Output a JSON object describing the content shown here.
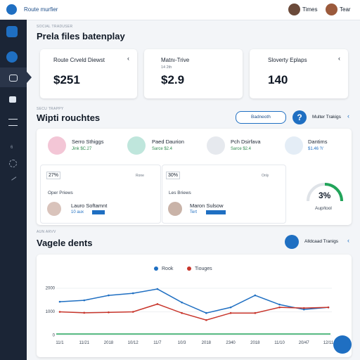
{
  "header": {
    "brand": "Route murfier",
    "users": [
      "Times",
      "Tear"
    ]
  },
  "sidebar_badge": "6",
  "section1": {
    "kicker": "SOCIAL TRADUSER",
    "title": "Prela files batenplay"
  },
  "cards": [
    {
      "label": "Route Crveld Diewst",
      "value": "$251"
    },
    {
      "label": "Matnı-Trive",
      "sub": "14 2th",
      "value": "$2.9"
    },
    {
      "label": "Sloverty Eplaps",
      "value": "140"
    }
  ],
  "section2": {
    "kicker": "SECU TRAPPY",
    "title": "Wipti rouchtes",
    "button": "Badneoth",
    "link": "Multer Trakigs"
  },
  "people": [
    {
      "name": "Serro Sthiggs",
      "detail": "Jink $C.27"
    },
    {
      "name": "Paed Daurion",
      "detail": "Sarce $2.4"
    },
    {
      "name": "Pch Dsirfava",
      "detail": "Sarce $2.4"
    },
    {
      "name": "Dantims",
      "detail": "$1.46 ?/"
    }
  ],
  "reviews": [
    {
      "percent": "27%",
      "tag": "Rone",
      "title": "Oper Priews",
      "name": "Lauro Softamnt",
      "detail": "10 aux"
    },
    {
      "percent": "30%",
      "tag": "Only",
      "title": "Les Briews",
      "name": "Maron Sulsow",
      "detail": "Tert"
    }
  ],
  "gauge": {
    "value": "3%",
    "label": "Aup/tool"
  },
  "section3": {
    "kicker": "AUN ARVV",
    "title": "Vagele dents",
    "link": "Alldcaad Tranigs"
  },
  "chart_data": {
    "type": "line",
    "categories": [
      "11/1",
      "11/21",
      "2018",
      "10/12",
      "11/7",
      "10/3",
      "2018",
      "2340",
      "2018",
      "11/10",
      "20/47",
      "12/11"
    ],
    "series": [
      {
        "name": "Rook",
        "color": "#1f6fc2",
        "values": [
          1430,
          1490,
          1700,
          1790,
          1970,
          1400,
          950,
          1190,
          1700,
          1310,
          1100,
          1190
        ]
      },
      {
        "name": "Tiouges",
        "color": "#c8352b",
        "values": [
          1000,
          960,
          980,
          1000,
          1330,
          950,
          650,
          950,
          950,
          1190,
          1160,
          1190
        ]
      }
    ],
    "ylim": [
      0,
      2300
    ],
    "yticks": [
      0,
      1000,
      2000
    ],
    "grid": true
  }
}
